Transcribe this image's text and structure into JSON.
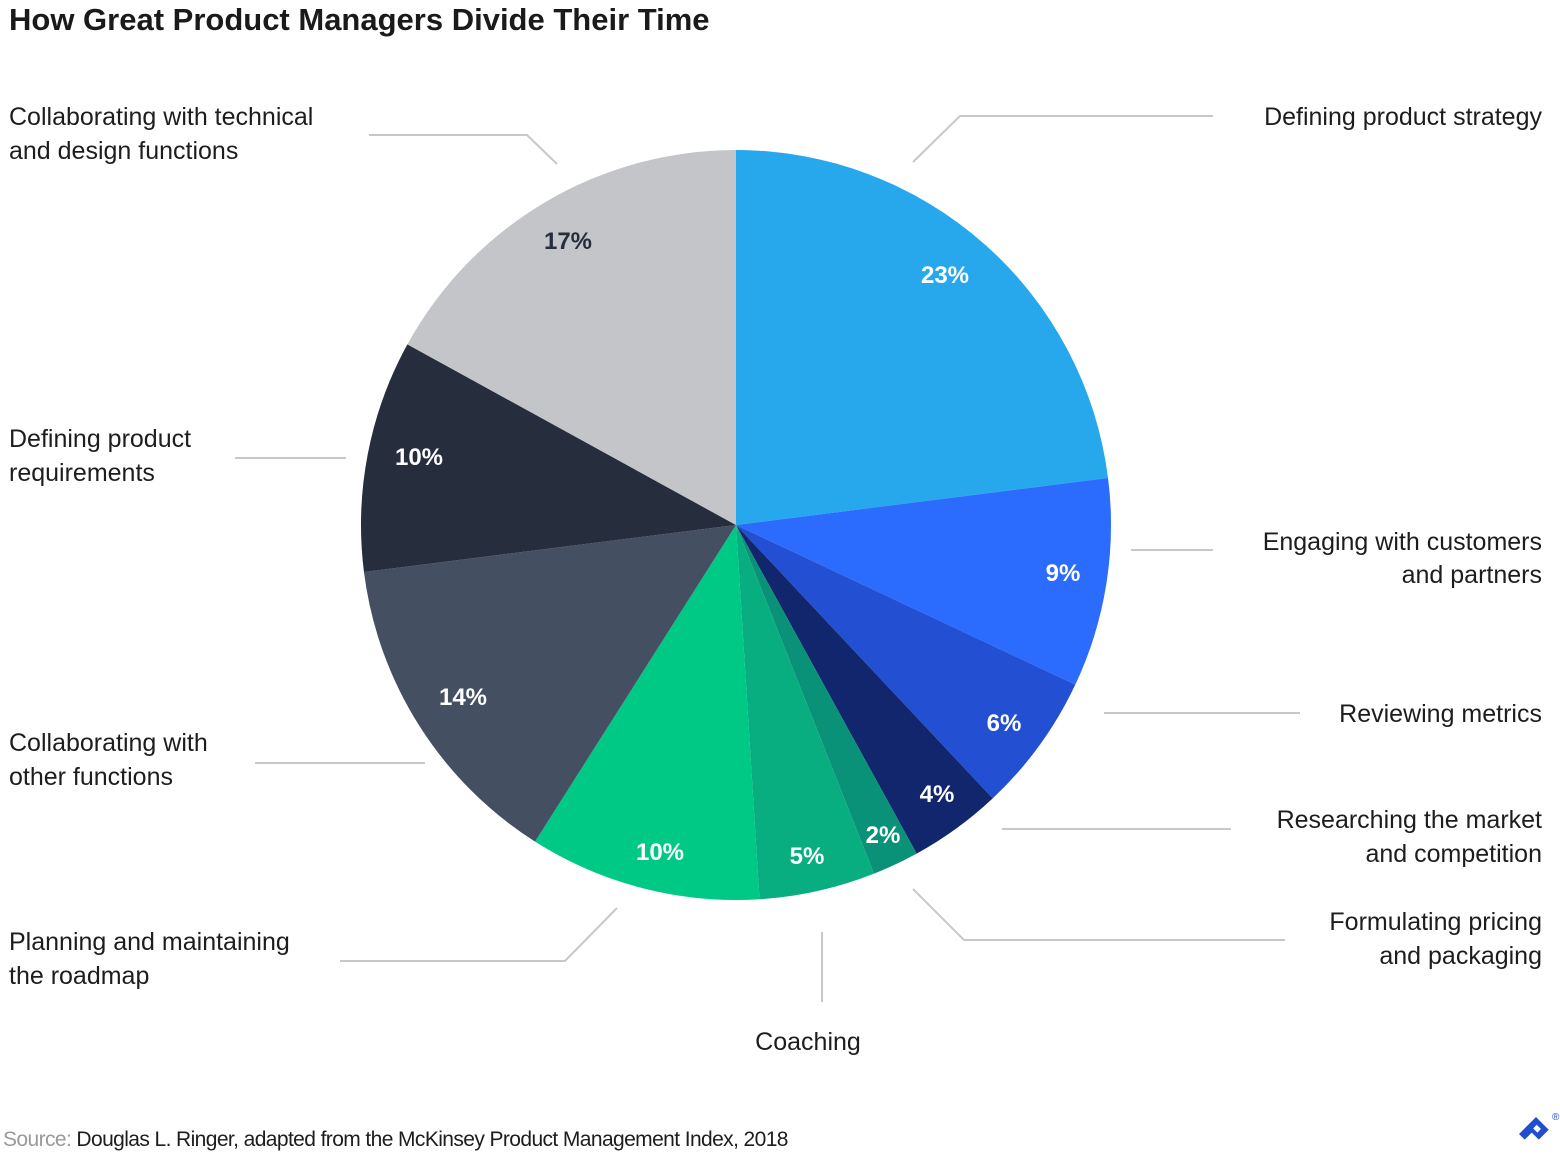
{
  "chart_data": {
    "type": "pie",
    "title": "How Great Product Managers Divide Their Time",
    "start": "12 o'clock, clockwise",
    "slices": [
      {
        "label": [
          "Defining product strategy"
        ],
        "value": 23,
        "value_label": "23%",
        "color": "#27A7EC",
        "text_color": "#ffffff"
      },
      {
        "label": [
          "Engaging with customers",
          "and partners"
        ],
        "value": 9,
        "value_label": "9%",
        "color": "#2B6BFE",
        "text_color": "#ffffff"
      },
      {
        "label": [
          "Reviewing metrics"
        ],
        "value": 6,
        "value_label": "6%",
        "color": "#2350D2",
        "text_color": "#ffffff"
      },
      {
        "label": [
          "Researching the market",
          "and competition"
        ],
        "value": 4,
        "value_label": "4%",
        "color": "#11266C",
        "text_color": "#ffffff"
      },
      {
        "label": [
          "Formulating pricing",
          "and packaging"
        ],
        "value": 2,
        "value_label": "2%",
        "color": "#0A9279",
        "text_color": "#ffffff"
      },
      {
        "label": [
          "Coaching"
        ],
        "value": 5,
        "value_label": "5%",
        "color": "#08AE80",
        "text_color": "#ffffff"
      },
      {
        "label": [
          "Planning and maintaining",
          "the roadmap"
        ],
        "value": 10,
        "value_label": "10%",
        "color": "#00C986",
        "text_color": "#ffffff"
      },
      {
        "label": [
          "Collaborating with",
          "other functions"
        ],
        "value": 14,
        "value_label": "14%",
        "color": "#454F62",
        "text_color": "#ffffff"
      },
      {
        "label": [
          "Defining product",
          "requirements"
        ],
        "value": 10,
        "value_label": "10%",
        "color": "#262D3D",
        "text_color": "#ffffff"
      },
      {
        "label": [
          "Collaborating with technical",
          "and design functions"
        ],
        "value": 17,
        "value_label": "17%",
        "color": "#C4C5C9",
        "text_color": "#262D3D"
      }
    ]
  },
  "source": {
    "prefix": "Source:",
    "text": " Douglas L. Ringer, adapted from the McKinsey Product Management Index, 2018"
  },
  "logo": {
    "name": "toptal-logo",
    "color": "#204ECF"
  }
}
